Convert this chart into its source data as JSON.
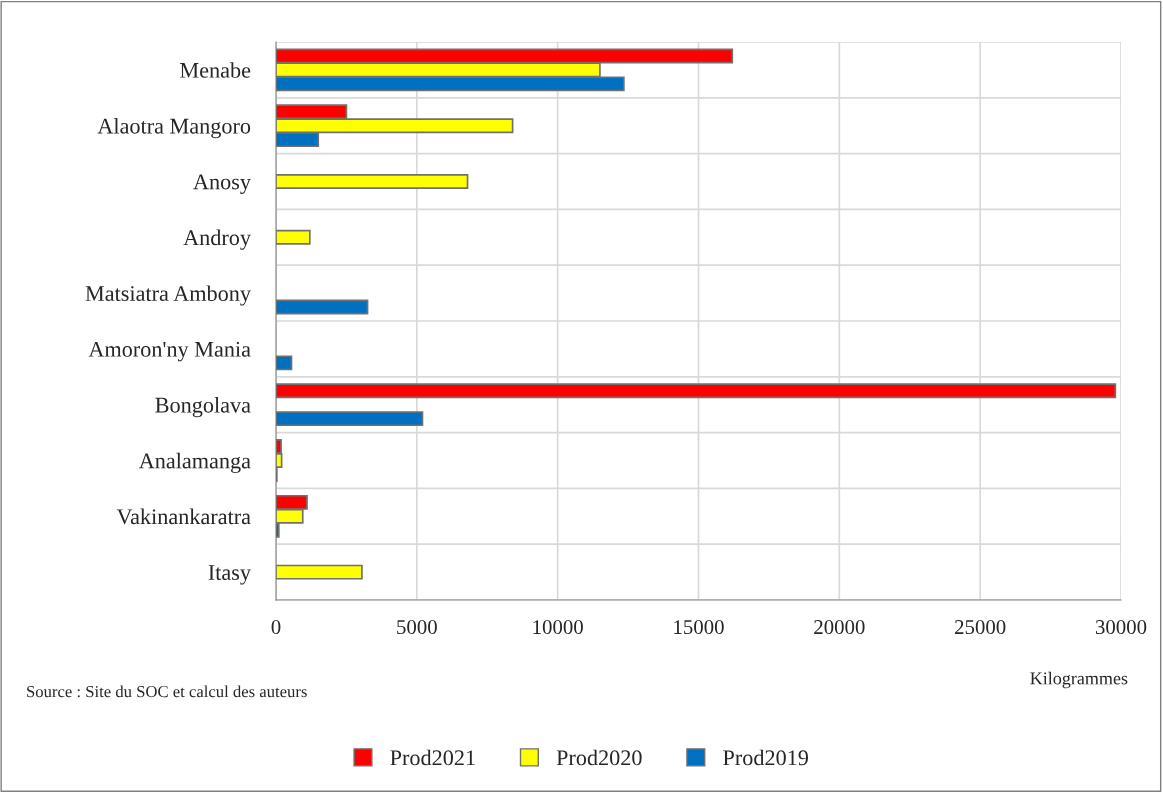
{
  "chart_data": {
    "type": "bar",
    "orientation": "horizontal",
    "categories": [
      "Menabe",
      "Alaotra Mangoro",
      "Anosy",
      "Androy",
      "Matsiatra Ambony",
      "Amoron'ny Mania",
      "Bongolava",
      "Analamanga",
      "Vakinankaratra",
      "Itasy"
    ],
    "series": [
      {
        "name": "Prod2021",
        "color": "#ff0000",
        "values": [
          16200,
          2500,
          null,
          null,
          null,
          null,
          29800,
          180,
          1100,
          null
        ]
      },
      {
        "name": "Prod2020",
        "color": "#ffff00",
        "values": [
          11500,
          8400,
          6800,
          1200,
          null,
          null,
          null,
          200,
          950,
          3050
        ]
      },
      {
        "name": "Prod2019",
        "color": "#0070c0",
        "values": [
          12350,
          1500,
          null,
          null,
          3250,
          550,
          5200,
          30,
          100,
          null
        ]
      }
    ],
    "xlim": [
      0,
      30000
    ],
    "xticks": [
      0,
      5000,
      10000,
      15000,
      20000,
      25000,
      30000
    ],
    "xlabel": "Kilogrammes",
    "annotations": [
      "Source : Site du SOC et calcul des auteurs"
    ],
    "grid": true,
    "legend": "bottom"
  }
}
